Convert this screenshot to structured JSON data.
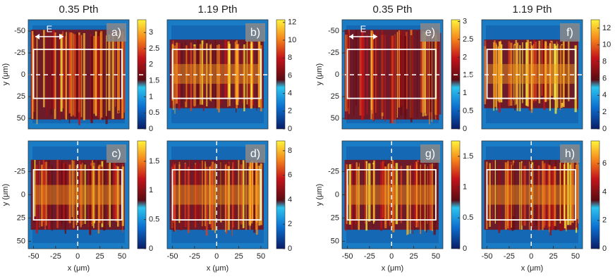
{
  "chart_data": [
    {
      "type": "heatmap",
      "title": "0.35 Pth",
      "panel_label": "a)",
      "ylabel": "y (μm)",
      "annotation": "E",
      "xlim": [
        -56,
        58
      ],
      "ylim": [
        -63,
        62
      ],
      "yreverse": true,
      "yticks": [
        -50,
        -25,
        0,
        25,
        50
      ],
      "clim": [
        0,
        3.4
      ],
      "cticks": [
        0,
        0.5,
        1,
        1.5,
        2,
        2.5,
        3
      ],
      "box": {
        "x": [
          -50,
          50
        ],
        "y": [
          -29,
          27
        ]
      },
      "hline": 0
    },
    {
      "type": "heatmap",
      "title": "1.19 Pth",
      "panel_label": "b)",
      "xlim": [
        -56,
        58
      ],
      "ylim": [
        -63,
        62
      ],
      "yreverse": true,
      "clim": [
        0,
        12.3
      ],
      "cticks": [
        0,
        2,
        4,
        6,
        8,
        10,
        12
      ],
      "box": {
        "x": [
          -50,
          50
        ],
        "y": [
          -29,
          27
        ]
      },
      "hline": 0
    },
    {
      "type": "heatmap",
      "panel_label": "c)",
      "ylabel": "y (μm)",
      "xlabel": "x (μm)",
      "xlim": [
        -56,
        58
      ],
      "ylim": [
        -58,
        58
      ],
      "yreverse": true,
      "xticks": [
        -50,
        -25,
        0,
        25,
        50
      ],
      "yticks": [
        -25,
        0,
        25,
        50
      ],
      "clim": [
        0,
        1.85
      ],
      "cticks": [
        0,
        0.5,
        1,
        1.5
      ],
      "box": {
        "x": [
          -50,
          50
        ],
        "y": [
          -27,
          27
        ]
      },
      "vline": 0
    },
    {
      "type": "heatmap",
      "panel_label": "d)",
      "xlabel": "x (μm)",
      "xlim": [
        -56,
        58
      ],
      "ylim": [
        -58,
        58
      ],
      "yreverse": true,
      "xticks": [
        -50,
        -25,
        0,
        25,
        50
      ],
      "clim": [
        0,
        8.8
      ],
      "cticks": [
        0,
        2,
        4,
        6,
        8
      ],
      "box": {
        "x": [
          -50,
          50
        ],
        "y": [
          -27,
          27
        ]
      },
      "vline": 0
    },
    {
      "type": "heatmap",
      "title": "0.35 Pth",
      "panel_label": "e)",
      "ylabel": "y (μm)",
      "annotation": "E",
      "xlim": [
        -56,
        58
      ],
      "ylim": [
        -63,
        62
      ],
      "yreverse": true,
      "yticks": [
        -50,
        -25,
        0,
        25,
        50
      ],
      "clim": [
        0,
        3.05
      ],
      "cticks": [
        0,
        0.5,
        1,
        1.5,
        2,
        2.5,
        3
      ],
      "box": {
        "x": [
          -50,
          50
        ],
        "y": [
          -29,
          27
        ]
      },
      "hline": 0
    },
    {
      "type": "heatmap",
      "title": "1.19 Pth",
      "panel_label": "f)",
      "xlim": [
        -56,
        58
      ],
      "ylim": [
        -63,
        62
      ],
      "yreverse": true,
      "clim": [
        0,
        13
      ],
      "cticks": [
        0,
        2,
        4,
        6,
        8,
        10,
        12
      ],
      "box": {
        "x": [
          -50,
          50
        ],
        "y": [
          -29,
          27
        ]
      },
      "hline": 0
    },
    {
      "type": "heatmap",
      "panel_label": "g)",
      "ylabel": "y (μm)",
      "xlabel": "x (μm)",
      "xlim": [
        -56,
        58
      ],
      "ylim": [
        -58,
        58
      ],
      "yreverse": true,
      "xticks": [
        -50,
        -25,
        0,
        25,
        50
      ],
      "yticks": [
        -25,
        0,
        25,
        50
      ],
      "clim": [
        0,
        1.75
      ],
      "cticks": [
        0,
        0.5,
        1,
        1.5
      ],
      "box": {
        "x": [
          -50,
          50
        ],
        "y": [
          -27,
          27
        ]
      },
      "vline": 0
    },
    {
      "type": "heatmap",
      "panel_label": "h)",
      "xlabel": "x (μm)",
      "xlim": [
        -56,
        58
      ],
      "ylim": [
        -58,
        58
      ],
      "yreverse": true,
      "xticks": [
        -50,
        -25,
        0,
        25,
        50
      ],
      "clim": [
        0,
        7.6
      ],
      "cticks": [
        0,
        2,
        4,
        6
      ],
      "box": {
        "x": [
          -50,
          50
        ],
        "y": [
          -27,
          27
        ]
      },
      "vline": 0
    }
  ]
}
